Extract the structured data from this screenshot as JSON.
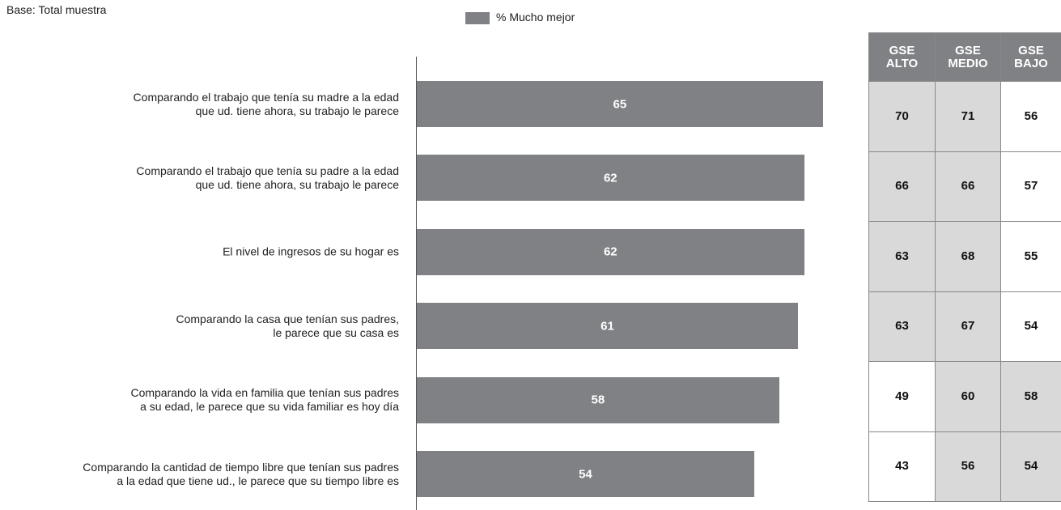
{
  "chart_data": {
    "type": "bar",
    "orientation": "horizontal",
    "subtitle": "Base: Total muestra",
    "categories": [
      "Comparando el trabajo que tenía su madre a la edad\nque ud. tiene ahora, su trabajo le parece",
      "Comparando el trabajo que tenía su padre a la edad\nque ud. tiene ahora, su trabajo le parece",
      "El nivel de ingresos de su hogar es",
      "Comparando la casa que tenían sus padres,\nle parece que su casa es",
      "Comparando la vida en familia que tenían sus padres\na su edad, le parece que su vida familiar es hoy día",
      "Comparando la cantidad de tiempo libre que tenían sus padres\na la edad que tiene ud., le parece que su tiempo libre es"
    ],
    "series": [
      {
        "name": "% Mucho mejor",
        "color": "#808184",
        "values": [
          65,
          62,
          62,
          61,
          58,
          54
        ]
      }
    ],
    "table": {
      "columns": [
        "GSE\nALTO",
        "GSE\nMEDIO",
        "GSE\nBAJO"
      ],
      "header_color": "#808184",
      "shade_color": "#d9d9d9",
      "rows": [
        [
          70,
          71,
          56
        ],
        [
          66,
          66,
          57
        ],
        [
          63,
          68,
          55
        ],
        [
          63,
          67,
          54
        ],
        [
          49,
          60,
          58
        ],
        [
          43,
          56,
          54
        ]
      ],
      "shaded": [
        [
          true,
          true,
          false
        ],
        [
          true,
          true,
          false
        ],
        [
          true,
          true,
          false
        ],
        [
          true,
          true,
          false
        ],
        [
          false,
          true,
          true
        ],
        [
          false,
          true,
          true
        ]
      ]
    }
  }
}
